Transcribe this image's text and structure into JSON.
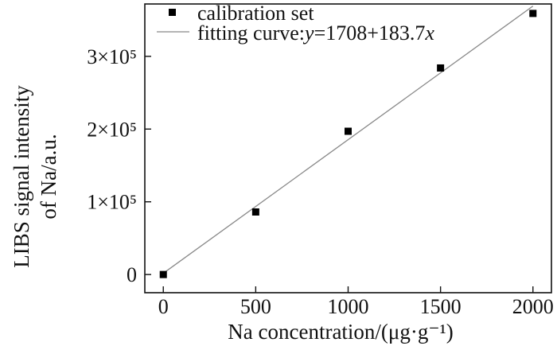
{
  "chart_data": {
    "type": "scatter",
    "title": "",
    "xlabel": "Na concentration/(μg·g⁻¹)",
    "ylabel_line1": "LIBS signal intensity",
    "ylabel_line2": "of Na/a.u.",
    "xlim": [
      -100,
      2100
    ],
    "ylim": [
      -25000,
      372000
    ],
    "x_ticks": [
      0,
      500,
      1000,
      1500,
      2000
    ],
    "x_tick_labels": [
      "0",
      "500",
      "1000",
      "1500",
      "2000"
    ],
    "y_ticks": [
      0,
      100000,
      200000,
      300000
    ],
    "y_tick_labels": [
      "0",
      "1×10⁵",
      "2×10⁵",
      "3×10⁵"
    ],
    "grid": false,
    "legend_position": "top-left",
    "series": [
      {
        "name": "calibration set",
        "marker": "square",
        "color": "#000000",
        "x": [
          0,
          500,
          1000,
          1500,
          2000
        ],
        "y": [
          0,
          86000,
          197000,
          284000,
          359000
        ]
      }
    ],
    "fit": {
      "name": "fitting curve:y=1708+183.7x",
      "intercept": 1708,
      "slope": 183.7,
      "color": "#888888",
      "x_range": [
        0,
        2000
      ]
    },
    "legend": {
      "scatter_label": "calibration set",
      "fit_label_prefix": "fitting curve:",
      "fit_label_var_y": "y",
      "fit_label_mid": "=1708+183.7",
      "fit_label_var_x": "x"
    }
  }
}
